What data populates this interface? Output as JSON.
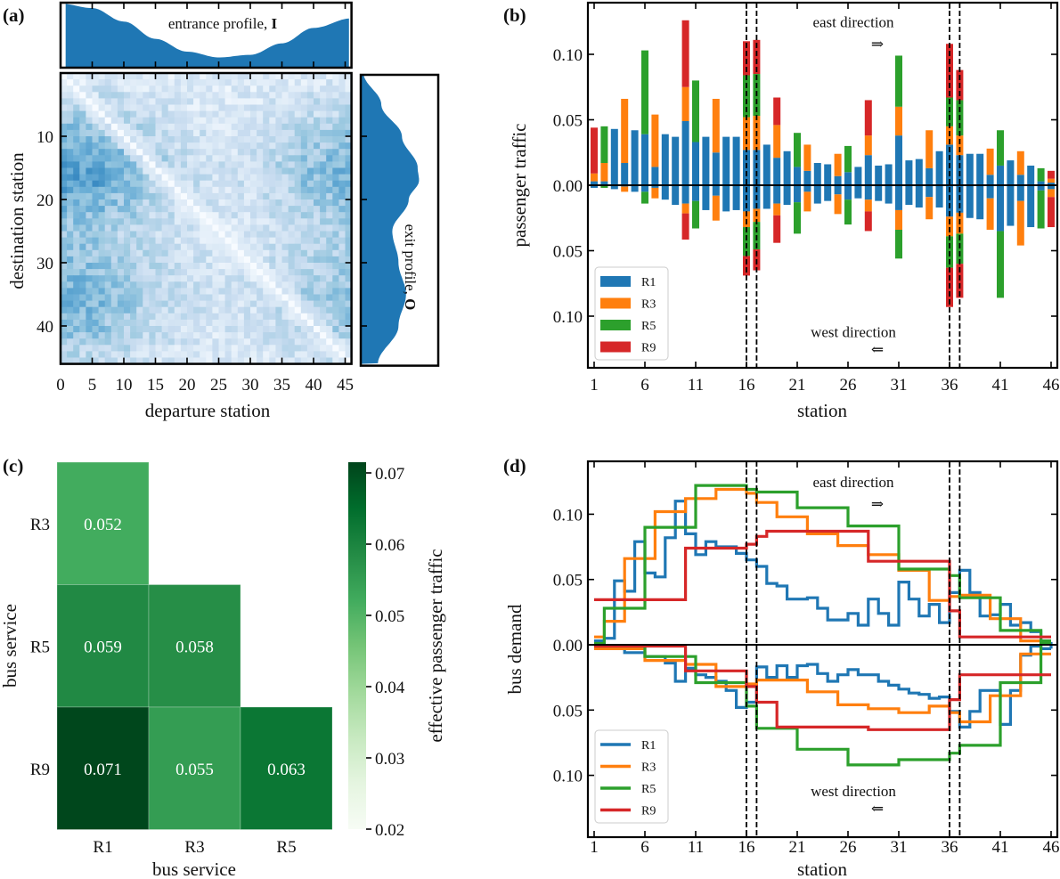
{
  "panel_labels": [
    "(a)",
    "(b)",
    "(c)",
    "(d)"
  ],
  "colors": {
    "R1": "#1f77b4",
    "R3": "#ff7f0e",
    "R5": "#2ca02c",
    "R9": "#d62728"
  },
  "chart_data": [
    {
      "panel": "(a)",
      "type": "heatmap",
      "colormap": "Blues",
      "xlabel": "departure station",
      "ylabel": "destination station",
      "xticks": [
        0,
        5,
        10,
        15,
        20,
        25,
        30,
        35,
        40,
        45
      ],
      "yticks": [
        10,
        20,
        30,
        40
      ],
      "xlim": [
        0,
        46
      ],
      "ylim": [
        46,
        0
      ],
      "diagonal": "near zero",
      "top_marginal": {
        "label": "entrance profile, ",
        "label_bold": "I",
        "stations": [
          0,
          5,
          10,
          15,
          20,
          25,
          30,
          35,
          40,
          46
        ],
        "relative_values": [
          1.0,
          0.93,
          0.72,
          0.45,
          0.25,
          0.16,
          0.2,
          0.38,
          0.62,
          0.77
        ]
      },
      "right_marginal": {
        "label": "exit profile, ",
        "label_bold": "O",
        "stations": [
          0,
          5,
          10,
          15,
          17,
          20,
          25,
          30,
          35,
          40,
          46
        ],
        "relative_values": [
          0.04,
          0.3,
          0.6,
          0.83,
          0.85,
          0.7,
          0.46,
          0.55,
          0.66,
          0.55,
          0.25
        ]
      }
    },
    {
      "panel": "(b)",
      "type": "bar",
      "stacked": true,
      "xlabel": "station",
      "ylabel": "passenger traffic",
      "xticks": [
        1,
        6,
        11,
        16,
        21,
        26,
        31,
        36,
        41,
        46
      ],
      "yticks": [
        0.1,
        0.05,
        0.0,
        -0.05,
        -0.1
      ],
      "ytick_labels": [
        "0.10",
        "0.05",
        "0.00",
        "0.05",
        "0.10"
      ],
      "ylim": [
        -0.14,
        0.14
      ],
      "xlim": [
        0.4,
        46.6
      ],
      "dashed_lines_at": [
        16,
        17,
        36,
        37
      ],
      "annotations": {
        "east": "east direction",
        "east_arrow": "⇒",
        "west": "west direction",
        "west_arrow": "⇐"
      },
      "legend": [
        "R1",
        "R3",
        "R5",
        "R9"
      ],
      "legend_placement": "lower-left",
      "east": {
        "R1": [
          0.003,
          0.003,
          0.043,
          0.017,
          0.042,
          0.039,
          0.014,
          0.039,
          0.037,
          0.049,
          0.033,
          0.037,
          0.025,
          0.037,
          0.037,
          0.027,
          0.027,
          0.031,
          0.021,
          0.026,
          0.014,
          0.011,
          0.017,
          0.016,
          0.007,
          0.01,
          0.014,
          0.023,
          0.015,
          0.016,
          0.038,
          0.019,
          0.02,
          0.013,
          0.026,
          0.031,
          0.023,
          0.024,
          0.024,
          0.008,
          0.015,
          0.019,
          0.008,
          0.015,
          0.003,
          0.002
        ],
        "R3": [
          0.006,
          0.014,
          0,
          0.049,
          0,
          0,
          0.04,
          0,
          0,
          0.026,
          0,
          0,
          0.041,
          0,
          0,
          0.025,
          0.026,
          0,
          0.025,
          0,
          0,
          0.02,
          0,
          0,
          0.017,
          0,
          0,
          0.015,
          0,
          0,
          0.022,
          0,
          0,
          0.029,
          0,
          0.014,
          0.015,
          0,
          0,
          0.02,
          0,
          0,
          0.018,
          0,
          0,
          0.003
        ],
        "R5": [
          0,
          0.028,
          0,
          0,
          0,
          0.064,
          0,
          0,
          0,
          0,
          0.047,
          0,
          0,
          0,
          0,
          0.032,
          0.032,
          0,
          0,
          0,
          0.026,
          0,
          0,
          0,
          0,
          0.02,
          0,
          0,
          0,
          0,
          0.039,
          0,
          0,
          0,
          0,
          0.022,
          0.027,
          0,
          0,
          0,
          0.027,
          0,
          0,
          0,
          0.01,
          0
        ],
        "R9": [
          0.035,
          0,
          0,
          0,
          0,
          0,
          0,
          0,
          0,
          0.051,
          0,
          0,
          0,
          0,
          0,
          0.026,
          0.026,
          0,
          0.021,
          0,
          0,
          0,
          0,
          0,
          0,
          0,
          0,
          0.027,
          0,
          0,
          0,
          0,
          0,
          0,
          0,
          0.041,
          0.023,
          0,
          0,
          0,
          0,
          0,
          0,
          0,
          0,
          0.006
        ]
      },
      "west": {
        "R1": [
          0.002,
          0,
          0.003,
          0.001,
          0.005,
          0.005,
          0.002,
          0.011,
          0.015,
          0.014,
          0.012,
          0.019,
          0.008,
          0.02,
          0.019,
          0.02,
          0.018,
          0.018,
          0.014,
          0.015,
          0.013,
          0.005,
          0.014,
          0.012,
          0.007,
          0.011,
          0.01,
          0.011,
          0.012,
          0.014,
          0.019,
          0.015,
          0.017,
          0.009,
          0.017,
          0.024,
          0.021,
          0.025,
          0.026,
          0.01,
          0.035,
          0.031,
          0.012,
          0.032,
          0.004,
          0.003
        ],
        "R3": [
          0,
          0,
          0,
          0.004,
          0,
          0,
          0.008,
          0,
          0,
          0.0075,
          0,
          0,
          0.019,
          0,
          0,
          0.012,
          0.01,
          0,
          0.009,
          0,
          0,
          0.015,
          0,
          0,
          0.015,
          0,
          0,
          0.009,
          0,
          0,
          0.015,
          0,
          0,
          0.017,
          0,
          0.015,
          0.016,
          0,
          0,
          0.024,
          0,
          0,
          0.034,
          0,
          0,
          0.006
        ],
        "R5": [
          0,
          0.002,
          0,
          0,
          0,
          0.009,
          0,
          0,
          0,
          0,
          0.021,
          0,
          0,
          0,
          0,
          0.022,
          0.021,
          0,
          0,
          0,
          0.024,
          0,
          0,
          0,
          0,
          0.019,
          0,
          0,
          0,
          0,
          0.022,
          0,
          0,
          0,
          0,
          0.024,
          0.023,
          0,
          0,
          0,
          0.051,
          0,
          0,
          0,
          0.029,
          0
        ],
        "R9": [
          0,
          0,
          0,
          0,
          0,
          0,
          0,
          0,
          0,
          0.02,
          0,
          0,
          0,
          0,
          0,
          0.015,
          0.016,
          0,
          0.021,
          0,
          0,
          0,
          0,
          0,
          0,
          0,
          0,
          0.015,
          0,
          0,
          0,
          0,
          0,
          0,
          0,
          0.03,
          0.026,
          0,
          0,
          0,
          0,
          0,
          0,
          0,
          0,
          0.023
        ]
      }
    },
    {
      "panel": "(c)",
      "type": "heatmap",
      "colormap": "Greens",
      "xlabel": "bus service",
      "ylabel": "bus service",
      "x_categories": [
        "R1",
        "R3",
        "R5"
      ],
      "y_categories": [
        "R3",
        "R5",
        "R9"
      ],
      "cells": [
        {
          "row": "R3",
          "col": "R1",
          "value": 0.052,
          "label": "0.052"
        },
        {
          "row": "R5",
          "col": "R1",
          "value": 0.059,
          "label": "0.059"
        },
        {
          "row": "R5",
          "col": "R3",
          "value": 0.058,
          "label": "0.058"
        },
        {
          "row": "R9",
          "col": "R1",
          "value": 0.071,
          "label": "0.071"
        },
        {
          "row": "R9",
          "col": "R3",
          "value": 0.055,
          "label": "0.055"
        },
        {
          "row": "R9",
          "col": "R5",
          "value": 0.063,
          "label": "0.063"
        }
      ],
      "colorbar": {
        "label": "effective passenger traffic",
        "range": [
          0.02,
          0.0715
        ],
        "ticks": [
          0.02,
          0.03,
          0.04,
          0.05,
          0.06,
          0.07
        ],
        "tick_labels": [
          "0.02",
          "0.03",
          "0.04",
          "0.05",
          "0.06",
          "0.07"
        ]
      }
    },
    {
      "panel": "(d)",
      "type": "line",
      "drawstyle": "steps",
      "xlabel": "station",
      "ylabel": "bus demand",
      "xticks": [
        1,
        6,
        11,
        16,
        21,
        26,
        31,
        36,
        41,
        46
      ],
      "yticks": [
        0.1,
        0.05,
        0.0,
        -0.05,
        -0.1
      ],
      "ytick_labels": [
        "0.10",
        "0.05",
        "0.00",
        "0.05",
        "0.10"
      ],
      "ylim": [
        -0.14,
        0.14
      ],
      "xlim": [
        0.4,
        46.6
      ],
      "dashed_lines_at": [
        16,
        17,
        36,
        37
      ],
      "annotations": {
        "east": "east direction",
        "east_arrow": "⇒",
        "west": "west direction",
        "west_arrow": "⇐"
      },
      "legend": [
        "R1",
        "R3",
        "R5",
        "R9"
      ],
      "legend_placement": "lower-left",
      "east": {
        "R1": [
          0.003,
          0.005,
          0.049,
          0.041,
          0.079,
          0.055,
          0.052,
          0.082,
          0.11,
          0.085,
          0.069,
          0.079,
          0.075,
          0.075,
          0.07,
          0.065,
          0.06,
          0.047,
          0.045,
          0.035,
          0.035,
          0.036,
          0.028,
          0.019,
          0.019,
          0.024,
          0.015,
          0.035,
          0.024,
          0.015,
          0.048,
          0.035,
          0.022,
          0.031,
          0.017,
          0.04,
          0.057,
          0.04,
          0.022,
          0.023,
          0.031,
          0.015,
          0.017,
          0.01,
          0.001,
          -0.003
        ],
        "R3": [
          0.006,
          0.018,
          0.018,
          0.066,
          0.066,
          0.066,
          0.102,
          0.102,
          0.102,
          0.112,
          0.112,
          0.112,
          0.119,
          0.119,
          0.119,
          0.116,
          0.109,
          0.109,
          0.098,
          0.098,
          0.098,
          0.085,
          0.085,
          0.085,
          0.076,
          0.076,
          0.076,
          0.069,
          0.069,
          0.069,
          0.057,
          0.057,
          0.057,
          0.034,
          0.034,
          0.037,
          0.038,
          0.038,
          0.038,
          0.02,
          0.02,
          0.02,
          0.003,
          0.003,
          0.003,
          0.003
        ],
        "R5": [
          0.001,
          0.028,
          0.028,
          0.028,
          0.028,
          0.09,
          0.09,
          0.09,
          0.09,
          0.09,
          0.122,
          0.122,
          0.122,
          0.122,
          0.122,
          0.119,
          0.117,
          0.117,
          0.117,
          0.117,
          0.105,
          0.105,
          0.105,
          0.105,
          0.105,
          0.091,
          0.091,
          0.091,
          0.091,
          0.091,
          0.058,
          0.058,
          0.058,
          0.058,
          0.058,
          0.053,
          0.036,
          0.036,
          0.036,
          0.036,
          0.011,
          0.011,
          0.011,
          0.011,
          0.003,
          0.003
        ],
        "R9": [
          0.0345,
          0.0345,
          0.0345,
          0.0345,
          0.0345,
          0.0345,
          0.0345,
          0.0345,
          0.0345,
          0.074,
          0.074,
          0.074,
          0.074,
          0.074,
          0.074,
          0.077,
          0.083,
          0.087,
          0.087,
          0.087,
          0.087,
          0.087,
          0.087,
          0.087,
          0.087,
          0.087,
          0.087,
          0.064,
          0.064,
          0.064,
          0.064,
          0.064,
          0.064,
          0.064,
          0.064,
          0.026,
          0.006,
          0.006,
          0.006,
          0.006,
          0.006,
          0.006,
          0.006,
          0.006,
          0.006,
          0.006
        ]
      },
      "west": {
        "R1": [
          0.001,
          0.003,
          0.003,
          0.006,
          0.006,
          0.009,
          0.009,
          0.014,
          0.028,
          0.018,
          0.023,
          0.025,
          0.028,
          0.035,
          0.048,
          0.044,
          0.017,
          0.025,
          0.016,
          0.025,
          0.016,
          0.015,
          0.022,
          0.028,
          0.023,
          0.019,
          0.023,
          0.023,
          0.028,
          0.031,
          0.034,
          0.037,
          0.038,
          0.041,
          0.04,
          0.051,
          0.063,
          0.051,
          0.035,
          0.035,
          0.061,
          0.035,
          0.008,
          0.001,
          0.003,
          0.003
        ],
        "R3": [
          0.003,
          0.003,
          0.003,
          0.003,
          0.003,
          0.012,
          0.012,
          0.012,
          0.012,
          0.015,
          0.015,
          0.015,
          0.032,
          0.032,
          0.032,
          0.03,
          0.027,
          0.027,
          0.027,
          0.027,
          0.027,
          0.036,
          0.036,
          0.036,
          0.046,
          0.046,
          0.046,
          0.049,
          0.049,
          0.049,
          0.052,
          0.052,
          0.052,
          0.047,
          0.047,
          0.052,
          0.059,
          0.059,
          0.059,
          0.039,
          0.039,
          0.039,
          0.007,
          0.007,
          0.007,
          0.007
        ],
        "R5": [
          0.001,
          0.001,
          0.001,
          0.001,
          0.001,
          0.009,
          0.009,
          0.009,
          0.009,
          0.009,
          0.029,
          0.029,
          0.029,
          0.029,
          0.029,
          0.047,
          0.064,
          0.064,
          0.064,
          0.064,
          0.08,
          0.08,
          0.08,
          0.08,
          0.08,
          0.092,
          0.092,
          0.092,
          0.092,
          0.092,
          0.088,
          0.088,
          0.088,
          0.088,
          0.088,
          0.083,
          0.077,
          0.077,
          0.077,
          0.077,
          0.029,
          0.029,
          0.029,
          0.029,
          -0.001,
          -0.001
        ],
        "R9": [
          0.001,
          0.001,
          0.001,
          0.001,
          0.001,
          0.001,
          0.001,
          0.001,
          0.001,
          0.02,
          0.02,
          0.02,
          0.02,
          0.02,
          0.02,
          0.032,
          0.044,
          0.044,
          0.063,
          0.063,
          0.063,
          0.063,
          0.063,
          0.063,
          0.063,
          0.063,
          0.063,
          0.065,
          0.065,
          0.065,
          0.065,
          0.065,
          0.065,
          0.065,
          0.065,
          0.042,
          0.023,
          0.023,
          0.023,
          0.023,
          0.023,
          0.023,
          0.023,
          0.023,
          0.023,
          0.023
        ]
      }
    }
  ]
}
